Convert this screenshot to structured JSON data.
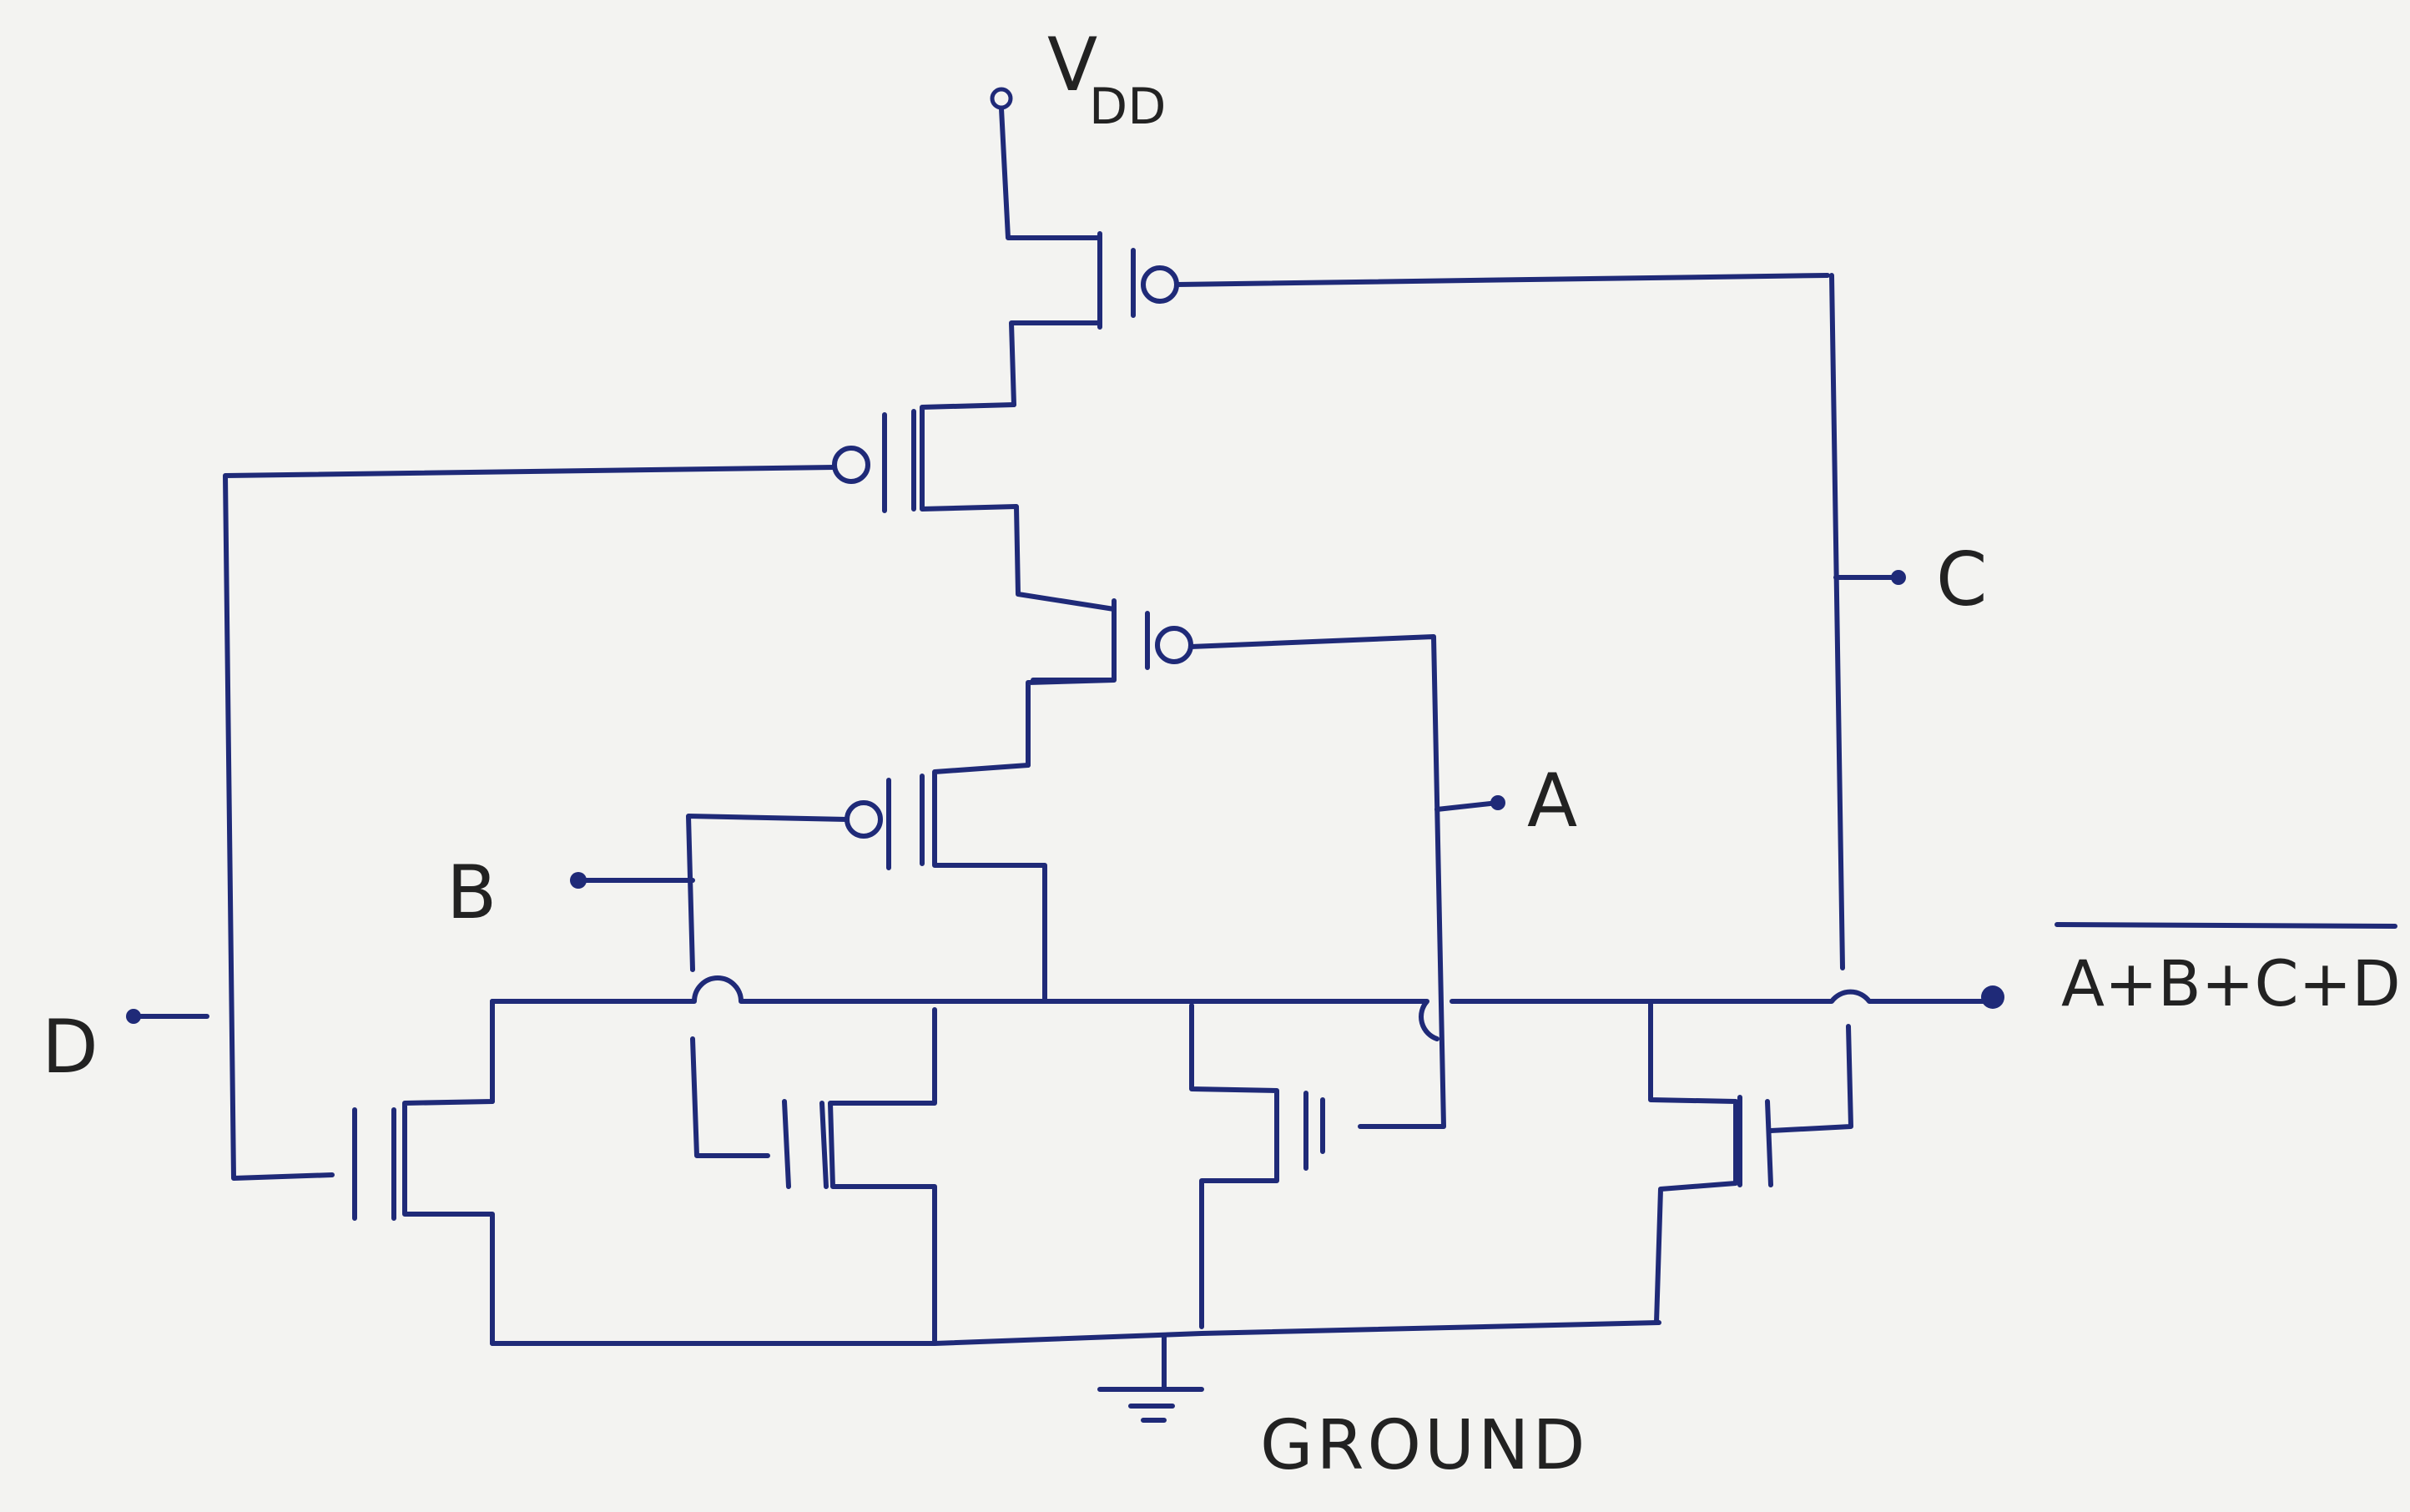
{
  "labels": {
    "vdd_main": "V",
    "vdd_sub": "DD",
    "input_a": "A",
    "input_b": "B",
    "input_c": "C",
    "input_d": "D",
    "output": "A+B+C+D",
    "ground": "GROUND"
  },
  "colors": {
    "ink": "#1f2a78",
    "paper": "#f3f3f1",
    "text": "#222222"
  }
}
